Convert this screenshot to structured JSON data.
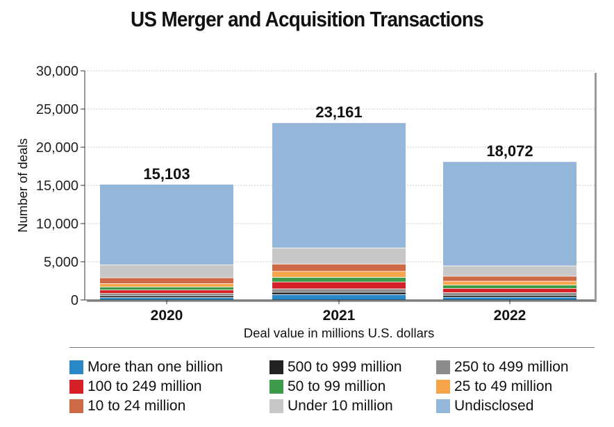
{
  "chart_data": {
    "type": "bar",
    "stacked": true,
    "title": "US Merger and Acquisition Transactions",
    "xlabel": "Deal value in millions U.S. dollars",
    "ylabel": "Number of deals",
    "ylim": [
      0,
      30000
    ],
    "yticks": [
      0,
      5000,
      10000,
      15000,
      20000,
      25000,
      30000
    ],
    "ytick_labels": [
      "0",
      "5,000",
      "10,000",
      "15,000",
      "20,000",
      "25,000",
      "30,000"
    ],
    "categories": [
      "2020",
      "2021",
      "2022"
    ],
    "totals": [
      15103,
      23161,
      18072
    ],
    "total_labels": [
      "15,103",
      "23,161",
      "18,072"
    ],
    "grid": true,
    "series": [
      {
        "name": "More than one billion",
        "color": "#2a88c6",
        "values": [
          300,
          700,
          350
        ]
      },
      {
        "name": "500 to 999 million",
        "color": "#222222",
        "values": [
          250,
          300,
          250
        ]
      },
      {
        "name": "250 to 499 million",
        "color": "#8c8c8c",
        "values": [
          300,
          450,
          350
        ]
      },
      {
        "name": "100 to 249 million",
        "color": "#d62027",
        "values": [
          450,
          900,
          550
        ]
      },
      {
        "name": "50 to 99 million",
        "color": "#3c9b48",
        "values": [
          400,
          600,
          450
        ]
      },
      {
        "name": "25 to 49 million",
        "color": "#f6a54a",
        "values": [
          450,
          800,
          500
        ]
      },
      {
        "name": "10 to 24 million",
        "color": "#cd6a45",
        "values": [
          750,
          950,
          650
        ]
      },
      {
        "name": "Under 10 million",
        "color": "#c8c8c8",
        "values": [
          1700,
          2100,
          1350
        ]
      },
      {
        "name": "Undisclosed",
        "color": "#94b6d8",
        "values": [
          10503,
          16361,
          13622
        ]
      }
    ],
    "legend": {
      "placement": "bottom",
      "order": [
        "More than one billion",
        "500 to 999 million",
        "250 to 499 million",
        "100 to 249 million",
        "50 to 99 million",
        "25 to 49 million",
        "10 to 24 million",
        "Under 10 million",
        "Undisclosed"
      ]
    }
  }
}
